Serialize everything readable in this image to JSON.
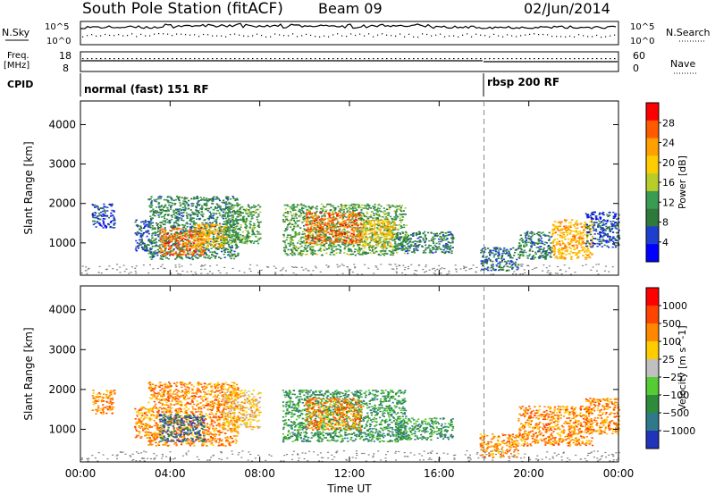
{
  "header": {
    "station": "South Pole Station (fitACF)",
    "beam": "Beam 09",
    "date": "02/Jun/2014"
  },
  "strip": {
    "nsky_label": "N.Sky",
    "nsearch_label": "N.Search",
    "noise_top_tick": "10^5",
    "noise_bottom_tick": "10^0",
    "freq_label_1": "Freq.",
    "freq_label_2": "[MHz]",
    "freq_ticks": [
      "18",
      "8"
    ],
    "nave_label": "Nave",
    "nave_ticks": [
      "60",
      "0"
    ],
    "cpid_label": "CPID",
    "modes": [
      {
        "label": "normal (fast) 151 RF",
        "start_hour": 0
      },
      {
        "label": "rbsp 200 RF",
        "start_hour": 18
      }
    ]
  },
  "colors": {
    "background": "#ffffff",
    "ground_scatter": "#808080"
  },
  "chart_data": [
    {
      "type": "heatmap",
      "name": "power-panel",
      "xlabel": "Time UT",
      "ylabel": "Slant Range [km]",
      "xlim": [
        0,
        24
      ],
      "ylim": [
        180,
        4600
      ],
      "xticks": [
        0,
        4,
        8,
        12,
        16,
        20,
        24
      ],
      "xtick_labels": [
        "00:00",
        "04:00",
        "08:00",
        "12:00",
        "16:00",
        "20:00",
        "00:00"
      ],
      "yticks": [
        1000,
        2000,
        3000,
        4000
      ],
      "ytick_labels": [
        "1000",
        "2000",
        "3000",
        "4000"
      ],
      "colorbar": {
        "label": "Power [dB]",
        "range": [
          0,
          32
        ],
        "ticks": [
          4,
          8,
          12,
          16,
          20,
          24,
          28
        ],
        "tick_labels": [
          "4",
          "8",
          "12",
          "16",
          "20",
          "24",
          "28"
        ],
        "colors": [
          "#0000ff",
          "#1e3ecf",
          "#2e7a3a",
          "#3a9b52",
          "#b8cc2a",
          "#ffcc00",
          "#ffa000",
          "#ff5a00",
          "#ff0000"
        ]
      },
      "vline_hour": 18,
      "blobs": [
        {
          "t0": 0.5,
          "t1": 1.5,
          "r0": 1400,
          "r1": 2000,
          "val": 5
        },
        {
          "t0": 2.4,
          "t1": 3.1,
          "r0": 800,
          "r1": 1600,
          "val": 6
        },
        {
          "t0": 3.0,
          "t1": 7.0,
          "r0": 600,
          "r1": 2200,
          "val": 10
        },
        {
          "t0": 3.5,
          "t1": 5.5,
          "r0": 700,
          "r1": 1400,
          "val": 26
        },
        {
          "t0": 5.0,
          "t1": 6.5,
          "r0": 900,
          "r1": 1500,
          "val": 22
        },
        {
          "t0": 6.3,
          "t1": 8.0,
          "r0": 1000,
          "r1": 2000,
          "val": 12
        },
        {
          "t0": 9.0,
          "t1": 14.5,
          "r0": 700,
          "r1": 2000,
          "val": 12
        },
        {
          "t0": 10.0,
          "t1": 12.5,
          "r0": 1000,
          "r1": 1800,
          "val": 26
        },
        {
          "t0": 12.5,
          "t1": 14.0,
          "r0": 900,
          "r1": 1600,
          "val": 20
        },
        {
          "t0": 14.0,
          "t1": 16.6,
          "r0": 750,
          "r1": 1300,
          "val": 9
        },
        {
          "t0": 17.8,
          "t1": 19.5,
          "r0": 300,
          "r1": 900,
          "val": 8
        },
        {
          "t0": 19.5,
          "t1": 21.0,
          "r0": 600,
          "r1": 1300,
          "val": 9
        },
        {
          "t0": 21.0,
          "t1": 22.8,
          "r0": 600,
          "r1": 1600,
          "val": 22
        },
        {
          "t0": 22.5,
          "t1": 24.0,
          "r0": 900,
          "r1": 1800,
          "val": 6
        }
      ]
    },
    {
      "type": "heatmap",
      "name": "velocity-panel",
      "xlabel": "Time UT",
      "ylabel": "Slant Range [km]",
      "xlim": [
        0,
        24
      ],
      "ylim": [
        180,
        4600
      ],
      "xticks": [
        0,
        4,
        8,
        12,
        16,
        20,
        24
      ],
      "xtick_labels": [
        "00:00",
        "04:00",
        "08:00",
        "12:00",
        "16:00",
        "20:00",
        "00:00"
      ],
      "yticks": [
        1000,
        2000,
        3000,
        4000
      ],
      "ytick_labels": [
        "1000",
        "2000",
        "3000",
        "4000"
      ],
      "colorbar": {
        "label": "Velocity [m s^-1]",
        "tick_labels": [
          "1000",
          "500",
          "100",
          "25",
          "-25",
          "-100",
          "-500",
          "-1000"
        ],
        "colors": [
          "#2233bb",
          "#2e7a8a",
          "#2e8b3a",
          "#55cc33",
          "#c0c0c0",
          "#ffcc00",
          "#ff8800",
          "#ff4400",
          "#ff0000"
        ]
      },
      "vline_hour": 18,
      "blobs": [
        {
          "t0": 0.5,
          "t1": 1.5,
          "r0": 1400,
          "r1": 2000,
          "val": 6
        },
        {
          "t0": 2.4,
          "t1": 3.1,
          "r0": 800,
          "r1": 1600,
          "val": 6
        },
        {
          "t0": 3.0,
          "t1": 7.0,
          "r0": 600,
          "r1": 2200,
          "val": 6
        },
        {
          "t0": 3.5,
          "t1": 5.5,
          "r0": 700,
          "r1": 1400,
          "val": 1
        },
        {
          "t0": 6.3,
          "t1": 8.0,
          "r0": 1000,
          "r1": 2000,
          "val": 5
        },
        {
          "t0": 9.0,
          "t1": 14.5,
          "r0": 700,
          "r1": 2000,
          "val": 2
        },
        {
          "t0": 10.0,
          "t1": 12.5,
          "r0": 1000,
          "r1": 1800,
          "val": 6
        },
        {
          "t0": 14.0,
          "t1": 16.6,
          "r0": 750,
          "r1": 1300,
          "val": 2
        },
        {
          "t0": 17.8,
          "t1": 19.5,
          "r0": 300,
          "r1": 900,
          "val": 6
        },
        {
          "t0": 19.5,
          "t1": 22.8,
          "r0": 600,
          "r1": 1600,
          "val": 6
        },
        {
          "t0": 22.5,
          "t1": 24.0,
          "r0": 900,
          "r1": 1800,
          "val": 6
        }
      ]
    }
  ]
}
